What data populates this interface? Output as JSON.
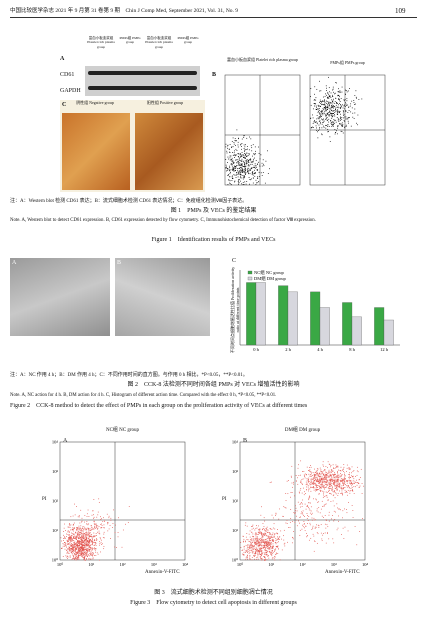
{
  "header": {
    "journal": "中国比较医学杂志 2021 年 9 月第 31 卷第 9 期　Chin J Comp Med, September 2021, Vol. 31, No. 9",
    "page": "109"
  },
  "figure1": {
    "panel_a": "A",
    "panel_b": "B",
    "panel_c": "C",
    "lanes": [
      "富血小板血浆组 Platelet rich plasma group",
      "PMPs组 PMPs group",
      "富血小板血浆组 Platelet rich plasma group",
      "PMPs组 PMPs group"
    ],
    "rows": [
      "CD61",
      "GAPDH"
    ],
    "c_labels": [
      "阴性组 Negative group",
      "阳性组 Positive group"
    ],
    "b_labels": [
      "富血小板血浆组 Platelet rich plasma group",
      "PMPs组 PMPs group"
    ],
    "note_cn": "注：A：Western blot 检测 CD61 表达；B：流式细胞术检测 CD61 表达情况；C：免疫组化检测Ⅷ因子表达。",
    "title_cn": "图 1　PMPs 及 VECs 的鉴定结果",
    "note_en": "Note. A, Western blot to detect CD61 expression. B, CD61 expression detected by flow cytometry. C, Immunohistochemical detection of factor Ⅷ expression.",
    "title_en": "Figure 1　Identification results of PMPs and VECs"
  },
  "figure2": {
    "panel_a": "A",
    "panel_b": "B",
    "panel_c": "C",
    "chart_data": {
      "type": "bar",
      "ylabel": "不同时间点细胞增殖活性比值 Proliferation activity ratio at different time points",
      "categories": [
        "0 h",
        "2 h",
        "4 h",
        "8 h",
        "12 h"
      ],
      "ylim": [
        0,
        1.2
      ],
      "series": [
        {
          "name": "NC组 NC group",
          "color": "#3aa845",
          "values": [
            1.0,
            0.95,
            0.85,
            0.68,
            0.6
          ]
        },
        {
          "name": "DM组 DM group",
          "color": "#d7d7de",
          "values": [
            1.0,
            0.85,
            0.6,
            0.45,
            0.4
          ]
        }
      ]
    },
    "note_cn": "注：A：NC 作用 4 h；B：DM 作用 4 h；C：不同作用时间的直方图。与作用 0 h 相比，*P<0.05，**P<0.01。",
    "title_cn": "图 2　CCK-8 法检测不同时间各组 PMPs 对 VECs 增殖活性的影响",
    "note_en": "Note. A, NC action for 4 h. B, DM action for 4 h. C, Histogram of different action time. Compared with the effect 0 h, *P<0.05, **P<0.01.",
    "title_en": "Figure 2　CCK-8 method to detect the effect of PMPs in each group on the proliferation activity of VECs at different times"
  },
  "figure3": {
    "panels": [
      {
        "label": "A",
        "group": "NC组 NC group"
      },
      {
        "label": "B",
        "group": "DM组 DM group"
      }
    ],
    "ylabel": "PI",
    "xlabel": "Annexin-V-FITC",
    "ticks": [
      "10⁰",
      "10¹",
      "10²",
      "10³",
      "10⁴"
    ],
    "title_cn": "图 3　流式细胞术检测不同组别细胞凋亡情况",
    "title_en": "Figure 3　Flow cytometry to detect cell apoptosis in different groups"
  }
}
